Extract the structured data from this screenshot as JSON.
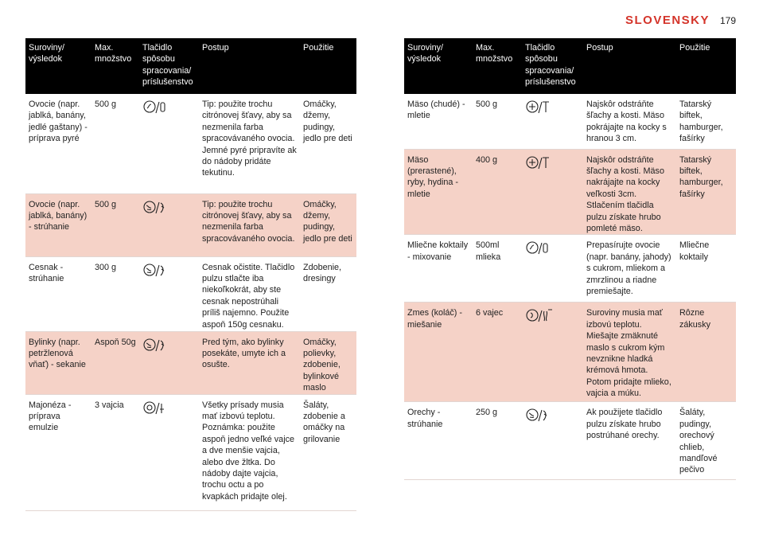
{
  "header": {
    "language": "SLOVENSKY",
    "page_number": "179"
  },
  "tables": [
    {
      "headers": [
        "Suroviny/ výsledok",
        "Max. množstvo",
        "Tlačidlo spôsobu spracovania/ príslušenstvo",
        "Postup",
        "Použitie"
      ],
      "rows": [
        {
          "ingredient": "Ovocie (napr. jablká, banány, jedlé gaštany) - príprava pyré",
          "amount": "500 g",
          "procedure": "Tip: použite trochu citrónovej šťavy, aby sa nezmenila farba spracovávaného ovocia. Jemné pyré pripravíte ak do nádoby pridáte tekutinu.",
          "use": "Omáčky, džemy, pudingy, jedlo pre deti"
        },
        {
          "ingredient": "Ovocie (napr. jablká, banány) - strúhanie",
          "amount": "500 g",
          "procedure": "Tip: použite trochu citrónovej šťavy, aby sa nezmenila farba spracovávaného ovocia.",
          "use": "Omáčky, džemy, pudingy, jedlo pre deti"
        },
        {
          "ingredient": "Cesnak - strúhanie",
          "amount": "300 g",
          "procedure": "Cesnak očistite. Tlačidlo pulzu stlačte iba niekoľkokrát, aby ste cesnak nepostrúhali príliš najemno. Použite aspoň 150g cesnaku.",
          "use": "Zdobenie, dresingy"
        },
        {
          "ingredient": "Bylinky (napr. petržlenová vňať) - sekanie",
          "amount": "Aspoň 50g",
          "procedure": "Pred tým, ako bylinky posekáte, umyte ich a osušte.",
          "use": "Omáčky, polievky, zdobenie, bylinkové maslo"
        },
        {
          "ingredient": "Majonéza - príprava emulzie",
          "amount": "3 vajcia",
          "procedure": "Všetky prísady musia mať izbovú teplotu. Poznámka: použite aspoň jedno veľké vajce a dve menšie vajcia, alebo dve žltka. Do nádoby dajte vajcia, trochu octu a po kvapkách pridajte olej.",
          "use": "Šaláty, zdobenie a omáčky na grilovanie"
        }
      ]
    },
    {
      "headers": [
        "Suroviny/ výsledok",
        "Max. množstvo",
        "Tlačidlo spôsobu spracovania/ príslušenstvo",
        "Postup",
        "Použitie"
      ],
      "rows": [
        {
          "ingredient": "Mäso (chudé) - mletie",
          "amount": "500 g",
          "procedure": "Najskôr odstráňte šľachy a kosti. Mäso pokrájajte na kocky s hranou 3 cm.",
          "use": "Tatarský biftek, hamburger, fašírky"
        },
        {
          "ingredient": "Mäso (prerastené), ryby, hydina - mletie",
          "amount": "400 g",
          "procedure": "Najskôr odstráňte šľachy a kosti. Mäso nakrájajte na kocky veľkosti 3cm. Stlačením tlačidla pulzu získate hrubo pomleté mäso.",
          "use": "Tatarský biftek, hamburger, fašírky"
        },
        {
          "ingredient": "Mliečne koktaily - mixovanie",
          "amount": "500ml mlieka",
          "procedure": "Prepasírujte ovocie (napr. banány, jahody) s cukrom, mliekom a zmrzlinou a riadne premiešajte.",
          "use": "Mliečne koktaily"
        },
        {
          "ingredient": "Zmes (koláč) - miešanie",
          "amount": "6 vajec",
          "procedure": "Suroviny musia mať izbovú teplotu. Miešajte zmäknuté maslo s cukrom kým nevznikne hladká krémová hmota. Potom pridajte mlieko, vajcia a múku.",
          "use": "Rôzne zákusky"
        },
        {
          "ingredient": "Orechy - strúhanie",
          "amount": "250 g",
          "procedure": "Ak použijete tlačidlo pulzu získate hrubo postrúhané orechy.",
          "use": "Šaláty, pudingy, orechový chlieb, mandľové pečivo"
        }
      ]
    }
  ]
}
